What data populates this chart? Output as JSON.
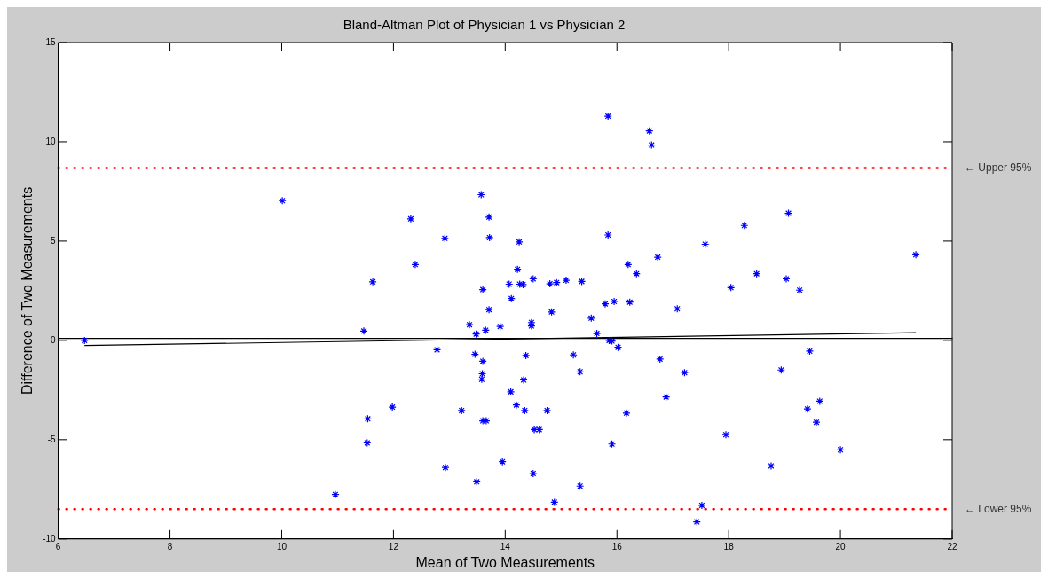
{
  "chart_data": {
    "type": "scatter",
    "title": "Bland-Altman Plot of Physician 1 vs Physician 2",
    "xlabel": "Mean of Two Measurements",
    "ylabel": "Difference of Two Measurements",
    "xlim": [
      6,
      22
    ],
    "xticks": [
      6,
      8,
      10,
      12,
      14,
      16,
      18,
      20,
      22
    ],
    "ylim": [
      -10,
      15
    ],
    "yticks": [
      -10,
      -5,
      0,
      5,
      10,
      15
    ],
    "grid": false,
    "legend": false,
    "series": [
      {
        "color": "#0000ff",
        "marker": "cross",
        "x": [
          6.47,
          10.01,
          10.96,
          11.47,
          11.53,
          11.54,
          11.63,
          11.98,
          12.31,
          12.39,
          12.78,
          12.92,
          12.93,
          13.22,
          13.36,
          13.46,
          13.48,
          13.49,
          13.57,
          13.58,
          13.59,
          13.6,
          13.6,
          13.6,
          13.65,
          13.66,
          13.71,
          13.71,
          13.72,
          13.91,
          13.95,
          14.07,
          14.1,
          14.11,
          14.2,
          14.22,
          14.25,
          14.26,
          14.32,
          14.33,
          14.35,
          14.37,
          14.47,
          14.47,
          14.5,
          14.5,
          14.52,
          14.61,
          14.75,
          14.8,
          14.83,
          14.88,
          14.92,
          15.09,
          15.22,
          15.34,
          15.34,
          15.37,
          15.54,
          15.64,
          15.79,
          15.84,
          15.84,
          15.86,
          15.91,
          15.91,
          15.95,
          16.02,
          16.17,
          16.2,
          16.23,
          16.35,
          16.58,
          16.62,
          16.73,
          16.77,
          16.88,
          17.08,
          17.21,
          17.43,
          17.52,
          17.58,
          17.95,
          18.04,
          18.28,
          18.5,
          18.76,
          18.94,
          19.03,
          19.07,
          19.27,
          19.41,
          19.45,
          19.57,
          19.63,
          20.0,
          21.35
        ],
        "values": [
          0.0,
          7.04,
          -7.76,
          0.47,
          -5.16,
          -3.95,
          2.95,
          -3.36,
          6.12,
          3.82,
          -0.47,
          5.14,
          -6.4,
          -3.53,
          0.79,
          -0.7,
          0.32,
          -7.12,
          7.34,
          -1.96,
          -1.68,
          2.56,
          -1.05,
          -4.05,
          0.51,
          -4.05,
          6.21,
          1.55,
          5.18,
          0.7,
          -6.11,
          2.83,
          -2.59,
          2.11,
          -3.25,
          3.58,
          4.96,
          2.83,
          2.81,
          -1.99,
          -3.53,
          -0.76,
          0.9,
          0.73,
          3.1,
          -6.7,
          -4.49,
          -4.49,
          -3.53,
          2.85,
          1.43,
          -8.15,
          2.91,
          3.03,
          -0.73,
          -1.58,
          -7.34,
          2.97,
          1.12,
          0.35,
          1.84,
          11.29,
          5.31,
          0.0,
          -0.03,
          -5.22,
          1.96,
          -0.35,
          -3.66,
          3.82,
          1.93,
          3.36,
          10.55,
          9.84,
          4.19,
          -0.94,
          -2.85,
          1.59,
          -1.62,
          -9.14,
          -8.31,
          4.84,
          -4.75,
          2.66,
          5.79,
          3.36,
          -6.32,
          -1.49,
          3.1,
          6.4,
          2.53,
          -3.45,
          -0.54,
          -4.12,
          -3.06,
          -5.51,
          4.31
        ]
      },
      {
        "type": "line",
        "color": "#000000",
        "marker": "none",
        "x": [
          6.47,
          21.35
        ],
        "values": [
          -0.26,
          0.39
        ]
      }
    ],
    "ref_lines": [
      {
        "axis": "y",
        "value": 8.68,
        "label": "← Upper 95%",
        "color": "#ff0000",
        "line_style": "dotted"
      },
      {
        "axis": "y",
        "value": -8.5,
        "label": "← Lower 95%",
        "color": "#ff0000",
        "line_style": "dotted"
      },
      {
        "axis": "y",
        "value": 0.1,
        "color": "#000000",
        "line_style": "solid"
      }
    ]
  }
}
